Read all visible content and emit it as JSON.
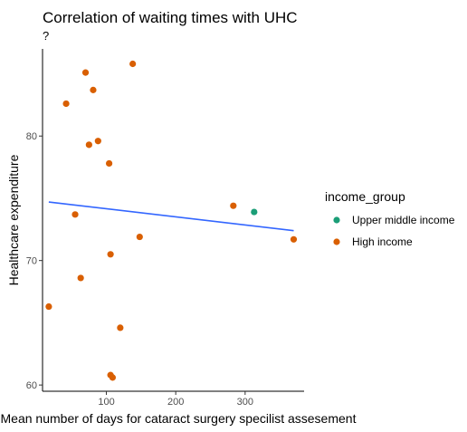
{
  "chart_data": {
    "type": "scatter",
    "title": "Correlation of waiting times with UHC",
    "subtitle": "?",
    "xlabel": "Mean number of days for cataract surgery specilist assesement",
    "ylabel": "Healthcare expenditure",
    "xlim": [
      8,
      385
    ],
    "ylim": [
      59.5,
      87.0
    ],
    "x_ticks": [
      100,
      200,
      300
    ],
    "y_ticks": [
      60,
      70,
      80
    ],
    "grid": false,
    "legend": {
      "title": "income_group",
      "placement": "right"
    },
    "series": [
      {
        "name": "Upper middle income",
        "color": "#1b9e77",
        "points": [
          {
            "x": 313,
            "y": 73.9
          }
        ]
      },
      {
        "name": "High income",
        "color": "#d95f02",
        "points": [
          {
            "x": 138,
            "y": 85.8
          },
          {
            "x": 70,
            "y": 85.1
          },
          {
            "x": 81,
            "y": 83.7
          },
          {
            "x": 42,
            "y": 82.6
          },
          {
            "x": 88,
            "y": 79.6
          },
          {
            "x": 75,
            "y": 79.3
          },
          {
            "x": 104,
            "y": 77.8
          },
          {
            "x": 283,
            "y": 74.4
          },
          {
            "x": 55,
            "y": 73.7
          },
          {
            "x": 148,
            "y": 71.9
          },
          {
            "x": 370,
            "y": 71.7
          },
          {
            "x": 106,
            "y": 70.5
          },
          {
            "x": 63,
            "y": 68.6
          },
          {
            "x": 17,
            "y": 66.3
          },
          {
            "x": 120,
            "y": 64.6
          },
          {
            "x": 106,
            "y": 60.8
          },
          {
            "x": 109,
            "y": 60.6
          }
        ]
      }
    ],
    "trend_line": {
      "color": "#3366ff",
      "x": [
        17,
        370
      ],
      "y": [
        74.7,
        72.4
      ]
    }
  }
}
